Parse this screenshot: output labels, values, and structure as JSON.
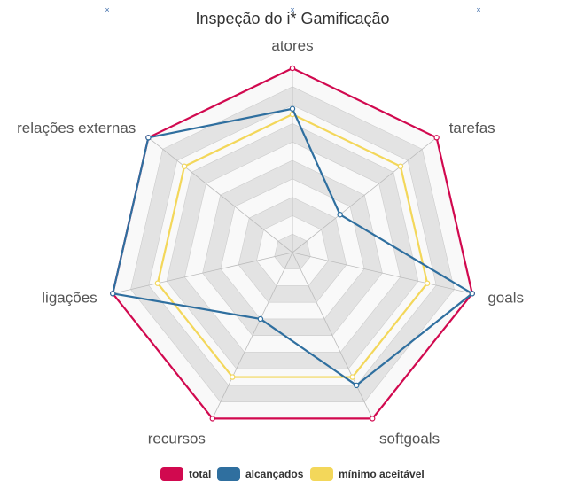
{
  "chart_data": {
    "type": "radar",
    "title": "Inspeção do i* Gamificação",
    "axes": [
      "atores",
      "tarefas",
      "goals",
      "softgoals",
      "recursos",
      "ligações",
      "relações externas"
    ],
    "rmax": 1.0,
    "levels": 10,
    "series": [
      {
        "name": "total",
        "color": "#d1094f",
        "values": [
          1.0,
          1.0,
          1.0,
          1.0,
          1.0,
          1.0,
          1.0
        ]
      },
      {
        "name": "alcançados",
        "color": "#2f6f9f",
        "values": [
          0.78,
          0.33,
          1.0,
          0.8,
          0.4,
          1.0,
          1.0
        ]
      },
      {
        "name": "mínimo aceitável",
        "color": "#f3d75a",
        "values": [
          0.75,
          0.75,
          0.75,
          0.75,
          0.75,
          0.75,
          0.75
        ]
      }
    ],
    "decorations": [
      "×",
      "×",
      "×"
    ]
  }
}
